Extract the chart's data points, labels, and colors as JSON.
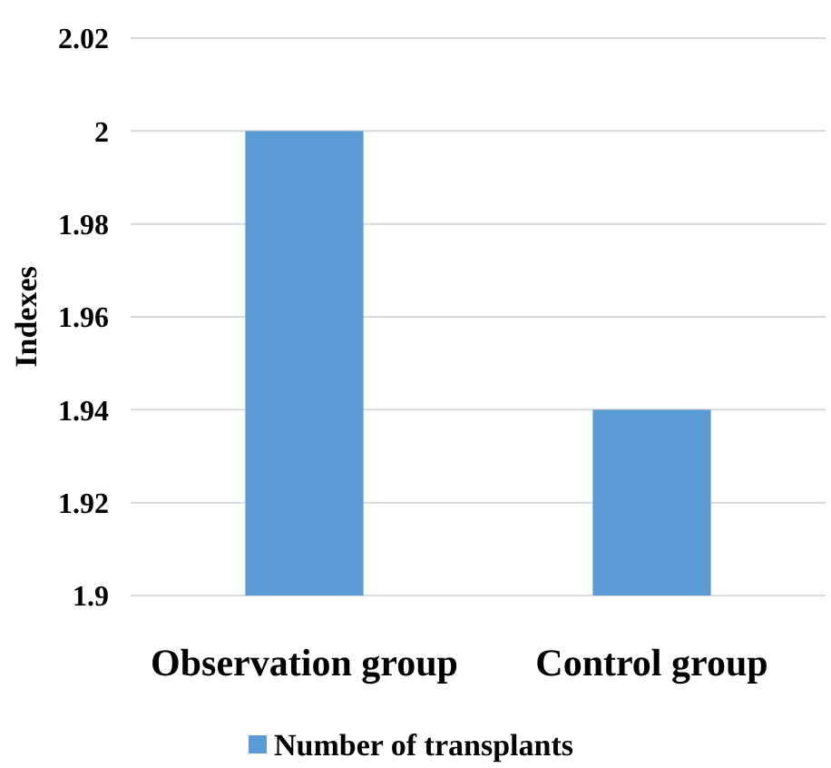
{
  "chart_data": {
    "type": "bar",
    "ylabel": "Indexes",
    "categories": [
      "Observation group",
      "Control group"
    ],
    "series": [
      {
        "name": "Number of transplants",
        "color": "#5b9bd5",
        "values": [
          2,
          1.94
        ]
      }
    ],
    "ylim": [
      1.9,
      2.02
    ],
    "yticks": [
      {
        "value": 1.9,
        "label": "1.9"
      },
      {
        "value": 1.92,
        "label": "1.92"
      },
      {
        "value": 1.94,
        "label": "1.94"
      },
      {
        "value": 1.96,
        "label": "1.96"
      },
      {
        "value": 1.98,
        "label": "1.98"
      },
      {
        "value": 2,
        "label": "2"
      },
      {
        "value": 2.02,
        "label": "2.02"
      }
    ],
    "grid": "y",
    "legend": "bottom"
  }
}
